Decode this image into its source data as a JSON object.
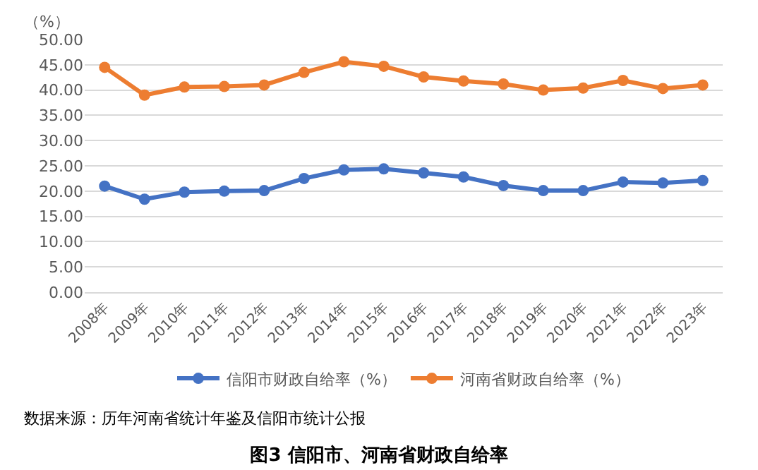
{
  "chart_data": {
    "type": "line",
    "title": "图3 信阳市、河南省财政自给率",
    "ylabel": "（%）",
    "categories": [
      "2008年",
      "2009年",
      "2010年",
      "2011年",
      "2012年",
      "2013年",
      "2014年",
      "2015年",
      "2016年",
      "2017年",
      "2018年",
      "2019年",
      "2020年",
      "2021年",
      "2022年",
      "2023年"
    ],
    "series": [
      {
        "name": "信阳市财政自给率（%）",
        "color": "#4472c4",
        "values": [
          21.0,
          18.4,
          19.8,
          20.0,
          20.1,
          22.5,
          24.2,
          24.4,
          23.6,
          22.8,
          21.1,
          20.1,
          20.1,
          21.8,
          21.6,
          22.1
        ]
      },
      {
        "name": "河南省财政自给率（%）",
        "color": "#ed7d31",
        "values": [
          44.5,
          39.0,
          40.6,
          40.7,
          41.0,
          43.5,
          45.6,
          44.7,
          42.6,
          41.8,
          41.2,
          40.0,
          40.4,
          41.9,
          40.3,
          41.0
        ]
      }
    ],
    "ylim": [
      0,
      50
    ],
    "yticks": [
      {
        "value": 0,
        "label": "0.00"
      },
      {
        "value": 5,
        "label": "5.00"
      },
      {
        "value": 10,
        "label": "10.00"
      },
      {
        "value": 15,
        "label": "15.00"
      },
      {
        "value": 20,
        "label": "20.00"
      },
      {
        "value": 25,
        "label": "25.00"
      },
      {
        "value": 30,
        "label": "30.00"
      },
      {
        "value": 35,
        "label": "35.00"
      },
      {
        "value": 40,
        "label": "40.00"
      },
      {
        "value": 45,
        "label": "45.00"
      },
      {
        "value": 50,
        "label": "50.00"
      }
    ],
    "grid": "y",
    "legend": "bottom",
    "marker": "circle",
    "line_style": "solid",
    "annotations": [
      "数据来源：历年河南省统计年鉴及信阳市统计公报"
    ]
  }
}
